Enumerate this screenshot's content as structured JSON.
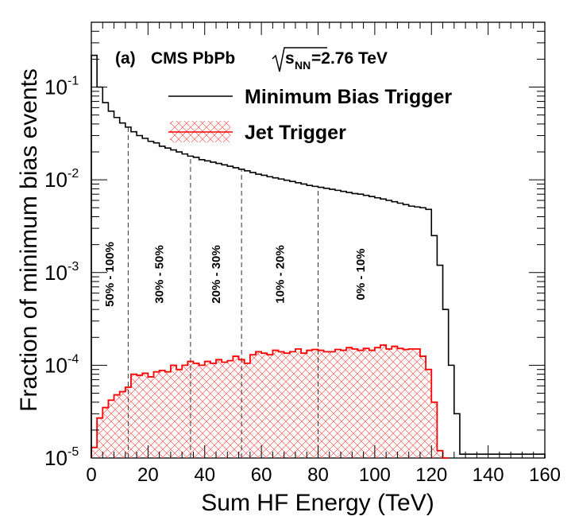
{
  "chart_data": {
    "type": "area",
    "panel_label": "(a)",
    "header": {
      "experiment": "CMS PbPb",
      "sqrt_symbol": "√",
      "s_label": "s",
      "nn_subscript": "NN",
      "energy_suffix": "=2.76 TeV"
    },
    "xlabel": "Sum HF Energy (TeV)",
    "ylabel": "Fraction of minimum bias events",
    "xlim": [
      0,
      160
    ],
    "ylim": [
      1e-05,
      0.5
    ],
    "yscale": "log",
    "x_ticks": [
      "0",
      "20",
      "40",
      "60",
      "80",
      "100",
      "120",
      "140",
      "160"
    ],
    "y_ticks": [
      {
        "value": 0.1,
        "base": "10",
        "exp": "-1"
      },
      {
        "value": 0.01,
        "base": "10",
        "exp": "-2"
      },
      {
        "value": 0.001,
        "base": "10",
        "exp": "-3"
      },
      {
        "value": 0.0001,
        "base": "10",
        "exp": "-4"
      },
      {
        "value": 1e-05,
        "base": "10",
        "exp": "-5"
      }
    ],
    "legend": [
      {
        "label": "Minimum Bias Trigger",
        "color": "#000000",
        "style": "line"
      },
      {
        "label": "Jet Trigger",
        "color": "#ff0000",
        "style": "hatched"
      }
    ],
    "legend_position": "top-right",
    "centrality_boundaries": [
      13,
      35,
      53,
      80
    ],
    "centrality_labels": [
      {
        "label": "50% - 100%",
        "x": 6.5
      },
      {
        "label": "30% - 50%",
        "x": 24
      },
      {
        "label": "20% - 30%",
        "x": 44
      },
      {
        "label": "10% - 20%",
        "x": 66.5
      },
      {
        "label": "0% - 10%",
        "x": 95
      }
    ],
    "bin_width": 2,
    "series": [
      {
        "name": "Minimum Bias Trigger",
        "color": "#000000",
        "x": [
          0,
          2,
          4,
          6,
          8,
          10,
          12,
          14,
          16,
          18,
          20,
          22,
          24,
          26,
          28,
          30,
          32,
          34,
          36,
          38,
          40,
          42,
          44,
          46,
          48,
          50,
          52,
          54,
          56,
          58,
          60,
          62,
          64,
          66,
          68,
          70,
          72,
          74,
          76,
          78,
          80,
          82,
          84,
          86,
          88,
          90,
          92,
          94,
          96,
          98,
          100,
          102,
          104,
          106,
          108,
          110,
          112,
          114,
          116,
          118,
          120,
          122,
          124,
          126,
          128,
          130,
          132,
          134,
          136,
          138,
          140,
          142,
          144,
          146,
          148,
          150,
          152,
          154,
          156,
          158
        ],
        "values": [
          0.22,
          0.1,
          0.068,
          0.055,
          0.047,
          0.041,
          0.037,
          0.033,
          0.03,
          0.028,
          0.026,
          0.025,
          0.023,
          0.022,
          0.021,
          0.02,
          0.019,
          0.018,
          0.0175,
          0.0165,
          0.016,
          0.0155,
          0.015,
          0.0145,
          0.014,
          0.0135,
          0.013,
          0.0125,
          0.012,
          0.0115,
          0.0112,
          0.0108,
          0.0105,
          0.0102,
          0.0099,
          0.0096,
          0.0093,
          0.009,
          0.0087,
          0.0085,
          0.0083,
          0.0081,
          0.0079,
          0.0077,
          0.0075,
          0.0073,
          0.0071,
          0.007,
          0.0068,
          0.0066,
          0.0064,
          0.0062,
          0.006,
          0.0058,
          0.0056,
          0.0054,
          0.0052,
          0.0051,
          0.005,
          0.0048,
          0.0025,
          0.0012,
          0.0004,
          0.0001,
          3e-05,
          1.1e-05,
          1.1e-05,
          1.1e-05,
          1.1e-05,
          1.1e-05,
          1.1e-05,
          1.1e-05,
          1.1e-05,
          1.1e-05,
          1.1e-05,
          1.1e-05,
          1.1e-05,
          1.1e-05,
          1.1e-05,
          1.1e-05
        ]
      },
      {
        "name": "Jet Trigger",
        "color": "#ff0000",
        "x": [
          0,
          2,
          4,
          6,
          8,
          10,
          12,
          14,
          16,
          18,
          20,
          22,
          24,
          26,
          28,
          30,
          32,
          34,
          36,
          38,
          40,
          42,
          44,
          46,
          48,
          50,
          52,
          54,
          56,
          58,
          60,
          62,
          64,
          66,
          68,
          70,
          72,
          74,
          76,
          78,
          80,
          82,
          84,
          86,
          88,
          90,
          92,
          94,
          96,
          98,
          100,
          102,
          104,
          106,
          108,
          110,
          112,
          114,
          116,
          118,
          120,
          122,
          124
        ],
        "values": [
          1.3e-05,
          2.7e-05,
          3.5e-05,
          4.2e-05,
          4.8e-05,
          5.2e-05,
          5.8e-05,
          8e-05,
          7.8e-05,
          8.2e-05,
          7.5e-05,
          8.5e-05,
          8.8e-05,
          8.5e-05,
          0.0001,
          9e-05,
          0.0001,
          0.00011,
          0.000105,
          0.0001,
          0.00011,
          0.000105,
          0.000115,
          0.000108,
          0.000112,
          0.000125,
          0.000115,
          0.000105,
          0.00013,
          0.00014,
          0.000135,
          0.00013,
          0.000145,
          0.00014,
          0.000135,
          0.00014,
          0.00015,
          0.000135,
          0.000145,
          0.000148,
          0.000145,
          0.00014,
          0.00014,
          0.000148,
          0.000145,
          0.000155,
          0.00015,
          0.000145,
          0.000152,
          0.000145,
          0.000155,
          0.000165,
          0.00015,
          0.00016,
          0.000152,
          0.000148,
          0.00015,
          0.00015,
          0.000125,
          9e-05,
          4e-05,
          1.2e-05,
          1e-05
        ]
      }
    ]
  }
}
